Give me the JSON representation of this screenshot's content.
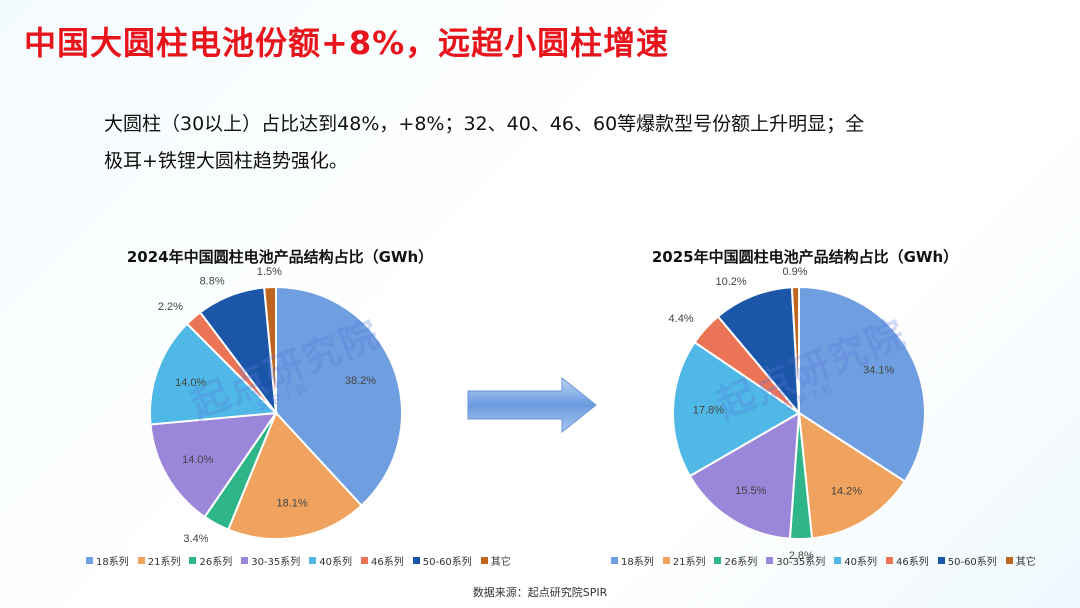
{
  "page": {
    "title": "中国大圆柱电池份额+8%，远超小圆柱增速",
    "description_line1": "大圆柱（30以上）占比达到48%，+8%；32、40、46、60等爆款型号份额上升明显；全",
    "description_line2": "极耳+铁锂大圆柱趋势强化。",
    "source": "数据来源：起点研究院SPIR",
    "watermark_cn": "起点研究院",
    "watermark_en": "SPIR",
    "arrow_icon": "right-arrow-icon"
  },
  "colors": {
    "title": "#e8141b",
    "series": [
      "#6f9fe0",
      "#f0a35e",
      "#2eb58a",
      "#9b87d9",
      "#4fb8e6",
      "#ea7455",
      "#1c56a8",
      "#c0651e"
    ]
  },
  "chart_data": [
    {
      "type": "pie",
      "title": "2024年中国圆柱电池产品结构占比（GWh）",
      "categories": [
        "18系列",
        "21系列",
        "26系列",
        "30-35系列",
        "40系列",
        "46系列",
        "50-60系列",
        "其它"
      ],
      "values": [
        38.2,
        18.1,
        3.4,
        14.0,
        14.0,
        2.2,
        8.8,
        1.5
      ],
      "labels": [
        "38.2%",
        "18.1%",
        "3.4%",
        "14.0%",
        "14.0%",
        "2.2%",
        "8.8%",
        "1.5%"
      ],
      "legend_position": "bottom"
    },
    {
      "type": "pie",
      "title": "2025年中国圆柱电池产品结构占比（GWh）",
      "categories": [
        "18系列",
        "21系列",
        "26系列",
        "30-35系列",
        "40系列",
        "46系列",
        "50-60系列",
        "其它"
      ],
      "values": [
        34.1,
        14.2,
        2.8,
        15.5,
        17.8,
        4.4,
        10.2,
        0.9
      ],
      "labels": [
        "34.1%",
        "14.2%",
        "2.8%",
        "15.5%",
        "17.8%",
        "4.4%",
        "10.2%",
        "0.9%"
      ],
      "legend_position": "bottom"
    }
  ]
}
